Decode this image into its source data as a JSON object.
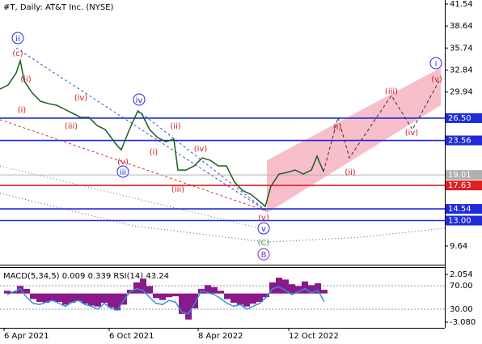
{
  "chart_data": [
    {
      "type": "price",
      "title": "#T, Daily:  AT&T Inc. (NYSE)",
      "x": [
        -5,
        5,
        15,
        20,
        25,
        35,
        45,
        55,
        65,
        75,
        85,
        95,
        105,
        115,
        125,
        140,
        145,
        155,
        165,
        170,
        180,
        190,
        200,
        210,
        215,
        225,
        235,
        245,
        255,
        265,
        275,
        285,
        295,
        305,
        315,
        323,
        330,
        340,
        350,
        360,
        370,
        380,
        387,
        395
      ],
      "values": [
        30.33,
        30.87,
        32.47,
        34.07,
        31.4,
        29.8,
        28.73,
        28.41,
        28.2,
        27.67,
        27.13,
        26.6,
        26.6,
        25.53,
        25.0,
        22.86,
        22.33,
        25.0,
        27.35,
        27.13,
        25.0,
        23.93,
        23.4,
        23.72,
        19.66,
        19.66,
        20.2,
        21.26,
        20.94,
        20.2,
        20.2,
        18.06,
        16.96,
        16.46,
        15.61,
        14.86,
        17.53,
        19.13,
        19.34,
        19.66,
        19.13,
        19.66,
        21.48,
        19.45
      ],
      "color": "#1b5e20",
      "xlim": [
        -5,
        545
      ],
      "ylim": [
        7.4,
        42.07
      ],
      "xticks": [
        {
          "value": 0,
          "label": "6 Apr 2021"
        },
        {
          "value": 130,
          "label": "6 Oct 2021"
        },
        {
          "value": 240,
          "label": "8 Apr 2022"
        },
        {
          "value": 352,
          "label": "12 Oct 2022"
        }
      ],
      "yticks": [
        41.54,
        38.64,
        35.74,
        32.84,
        29.94,
        9.64
      ],
      "levels": [
        {
          "value": 26.5,
          "label": "26.50",
          "color": "#1f2bd6"
        },
        {
          "value": 23.56,
          "label": "23.56",
          "color": "#1f2bd6"
        },
        {
          "value": 19.01,
          "label": "19.01",
          "color": "#b0b0b0"
        },
        {
          "value": 17.63,
          "label": "17.63",
          "color": "#e02020"
        },
        {
          "value": 14.54,
          "label": "14.54",
          "color": "#1f2bd6"
        },
        {
          "value": 13,
          "label": "13.00",
          "color": "#1f2bd6"
        }
      ],
      "channel": {
        "x": [
          325,
          540,
          540,
          325
        ],
        "y": [
          20.94,
          33.14,
          28.2,
          13.99
        ],
        "color": "#f7b3c0"
      },
      "projection": {
        "x": [
          395,
          413,
          427,
          479,
          505,
          538
        ],
        "y": [
          19.45,
          26.6,
          21.26,
          29.48,
          25.0,
          31.4
        ],
        "color": "#333333"
      },
      "lines": [
        {
          "x": [
            15,
            325
          ],
          "y": [
            35.74,
            14.22
          ],
          "color": "#3050d0",
          "dash": "3,3"
        },
        {
          "x": [
            -5,
            325
          ],
          "y": [
            26.3,
            14.22
          ],
          "color": "#d03030",
          "dash": "3,3"
        },
        {
          "x": [
            165,
            325
          ],
          "y": [
            27.56,
            14.22
          ],
          "color": "#3050d0",
          "dash": "3,3"
        },
        {
          "x": [
            -5,
            325
          ],
          "y": [
            20.2,
            11.76
          ],
          "color": "#3a9a3a",
          "dash": "1,3"
        },
        {
          "x": [
            -5,
            160,
            325,
            440,
            545
          ],
          "y": [
            16.6,
            12.3,
            10.16,
            10.8,
            12.0
          ],
          "color": "#7a30b0",
          "dash": "1,3"
        }
      ],
      "annotations": [
        {
          "text": "ii",
          "x": 17,
          "y": 37.06,
          "color": "#1f2bd6",
          "circled": true
        },
        {
          "text": "(c)",
          "x": 17,
          "y": 35.14,
          "color": "#d02020",
          "circled": false
        },
        {
          "text": "(ii)",
          "x": 27,
          "y": 31.72,
          "color": "#d02020",
          "circled": false
        },
        {
          "text": "(i)",
          "x": 22,
          "y": 27.67,
          "color": "#d02020",
          "circled": false
        },
        {
          "text": "(iv)",
          "x": 95,
          "y": 29.27,
          "color": "#d02020",
          "circled": false
        },
        {
          "text": "(iii)",
          "x": 83,
          "y": 25.53,
          "color": "#d02020",
          "circled": false
        },
        {
          "text": "(v)",
          "x": 147,
          "y": 20.84,
          "color": "#d02020",
          "circled": false
        },
        {
          "text": "iii",
          "x": 147,
          "y": 19.45,
          "color": "#1f2bd6",
          "circled": true
        },
        {
          "text": "iv",
          "x": 167,
          "y": 28.95,
          "color": "#1f2bd6",
          "circled": true
        },
        {
          "text": "(i)",
          "x": 185,
          "y": 22.12,
          "color": "#d02020",
          "circled": false
        },
        {
          "text": "(ii)",
          "x": 212,
          "y": 25.53,
          "color": "#d02020",
          "circled": false
        },
        {
          "text": "(iii)",
          "x": 215,
          "y": 17.21,
          "color": "#d02020",
          "circled": false
        },
        {
          "text": "(iv)",
          "x": 243,
          "y": 22.54,
          "color": "#d02020",
          "circled": false
        },
        {
          "text": "(v)",
          "x": 321,
          "y": 13.47,
          "color": "#d02020",
          "circled": false
        },
        {
          "text": "v",
          "x": 321,
          "y": 11.98,
          "color": "#1f2bd6",
          "circled": true
        },
        {
          "text": "(C)",
          "x": 321,
          "y": 10.16,
          "color": "#3a9a3a",
          "circled": false
        },
        {
          "text": "B",
          "x": 321,
          "y": 8.56,
          "color": "#7a30b0",
          "circled": true
        },
        {
          "text": "(i)",
          "x": 412,
          "y": 25.43,
          "color": "#d02020",
          "circled": false
        },
        {
          "text": "(ii)",
          "x": 428,
          "y": 19.45,
          "color": "#d02020",
          "circled": false
        },
        {
          "text": "(iii)",
          "x": 479,
          "y": 30.12,
          "color": "#d02020",
          "circled": false
        },
        {
          "text": "(iv)",
          "x": 504,
          "y": 24.68,
          "color": "#d02020",
          "circled": false
        },
        {
          "text": "(v)",
          "x": 535,
          "y": 31.72,
          "color": "#d02020",
          "circled": false
        },
        {
          "text": "i",
          "x": 534,
          "y": 33.75,
          "color": "#1f2bd6",
          "circled": true
        }
      ]
    },
    {
      "type": "indicator",
      "title": "MACD(5,34,5) 0.009 0.339 RSI(14) 43.24",
      "x": [
        0,
        8,
        16,
        24,
        32,
        40,
        48,
        56,
        64,
        72,
        80,
        88,
        96,
        104,
        112,
        120,
        128,
        136,
        144,
        152,
        160,
        168,
        176,
        184,
        192,
        200,
        208,
        216,
        224,
        232,
        240,
        248,
        256,
        264,
        272,
        280,
        288,
        296,
        304,
        312,
        320,
        328,
        336,
        344,
        352,
        360,
        368,
        376,
        384,
        392
      ],
      "histogram": {
        "color": "#8a1a8a",
        "values": [
          0.3,
          0.2,
          0.8,
          0.5,
          -0.6,
          -0.9,
          -1.0,
          -0.8,
          -0.9,
          -1.2,
          -1.0,
          -0.8,
          -1.1,
          -1.3,
          -1.4,
          -1.0,
          -1.5,
          -1.8,
          -1.2,
          0.4,
          1.2,
          1.6,
          0.8,
          -0.5,
          -0.7,
          -0.4,
          -0.3,
          -2.2,
          -2.8,
          -1.6,
          0.5,
          0.9,
          0.7,
          0.3,
          -0.6,
          -1.0,
          -1.2,
          -1.4,
          -1.1,
          -0.9,
          -0.4,
          1.2,
          1.7,
          1.5,
          1.0,
          0.8,
          1.3,
          0.9,
          1.1,
          0.4
        ]
      },
      "rsi": {
        "color": "#2f8fe0",
        "values": [
          55,
          60,
          65,
          50,
          40,
          38,
          42,
          45,
          40,
          35,
          42,
          45,
          38,
          35,
          30,
          40,
          32,
          28,
          45,
          60,
          65,
          62,
          50,
          40,
          38,
          45,
          42,
          25,
          22,
          40,
          62,
          58,
          55,
          48,
          40,
          35,
          38,
          30,
          35,
          40,
          50,
          65,
          68,
          62,
          55,
          60,
          65,
          58,
          62,
          43
        ]
      },
      "ylim": [
        -3.69,
        2.58
      ],
      "yticks": [
        2.054,
        {
          "value": -3.08,
          "label": "-3.080"
        }
      ],
      "y2lim": [
        -1.7,
        97.6
      ],
      "y2ticks": [
        {
          "value": 70,
          "label": "70.00"
        },
        {
          "value": 30,
          "label": "30.00"
        }
      ]
    }
  ]
}
